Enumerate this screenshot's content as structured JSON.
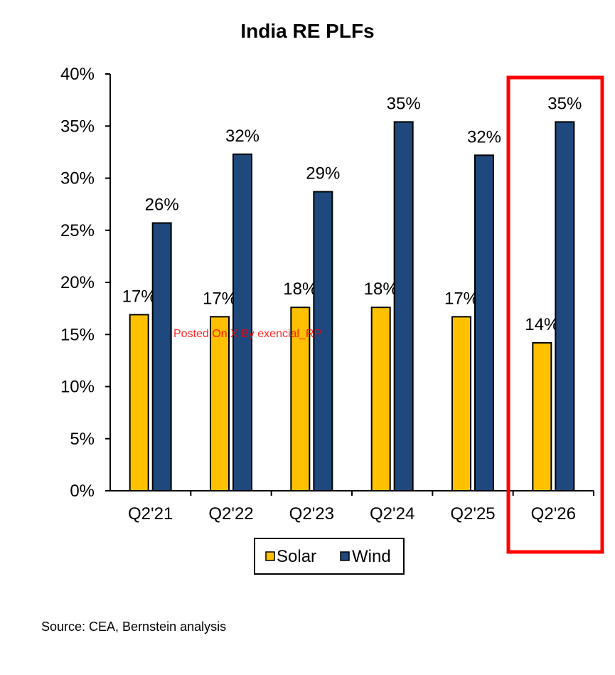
{
  "source": "Source: CEA, Bernstein analysis",
  "watermark": "Posted On X By exencial_RP",
  "chart_data": {
    "type": "bar",
    "title": "India RE PLFs",
    "xlabel": "",
    "ylabel": "",
    "ylim": [
      0,
      40
    ],
    "yticks": [
      0,
      5,
      10,
      15,
      20,
      25,
      30,
      35,
      40
    ],
    "ytick_labels": [
      "0%",
      "5%",
      "10%",
      "15%",
      "20%",
      "25%",
      "30%",
      "35%",
      "40%"
    ],
    "categories": [
      "Q2'21",
      "Q2'22",
      "Q2'23",
      "Q2'24",
      "Q2'25",
      "Q2'26"
    ],
    "series": [
      {
        "name": "Solar",
        "color": "#FFC000",
        "values": [
          16.9,
          16.7,
          17.6,
          17.6,
          16.7,
          14.2
        ],
        "labels": [
          "17%",
          "17%",
          "18%",
          "18%",
          "17%",
          "14%"
        ]
      },
      {
        "name": "Wind",
        "color": "#1F497D",
        "values": [
          25.7,
          32.3,
          28.7,
          35.4,
          32.2,
          35.4
        ],
        "labels": [
          "26%",
          "32%",
          "29%",
          "35%",
          "32%",
          "35%"
        ]
      }
    ],
    "legend_position": "bottom",
    "grid": false,
    "highlight_category": "Q2'26",
    "highlight_color": "#FF0000"
  }
}
